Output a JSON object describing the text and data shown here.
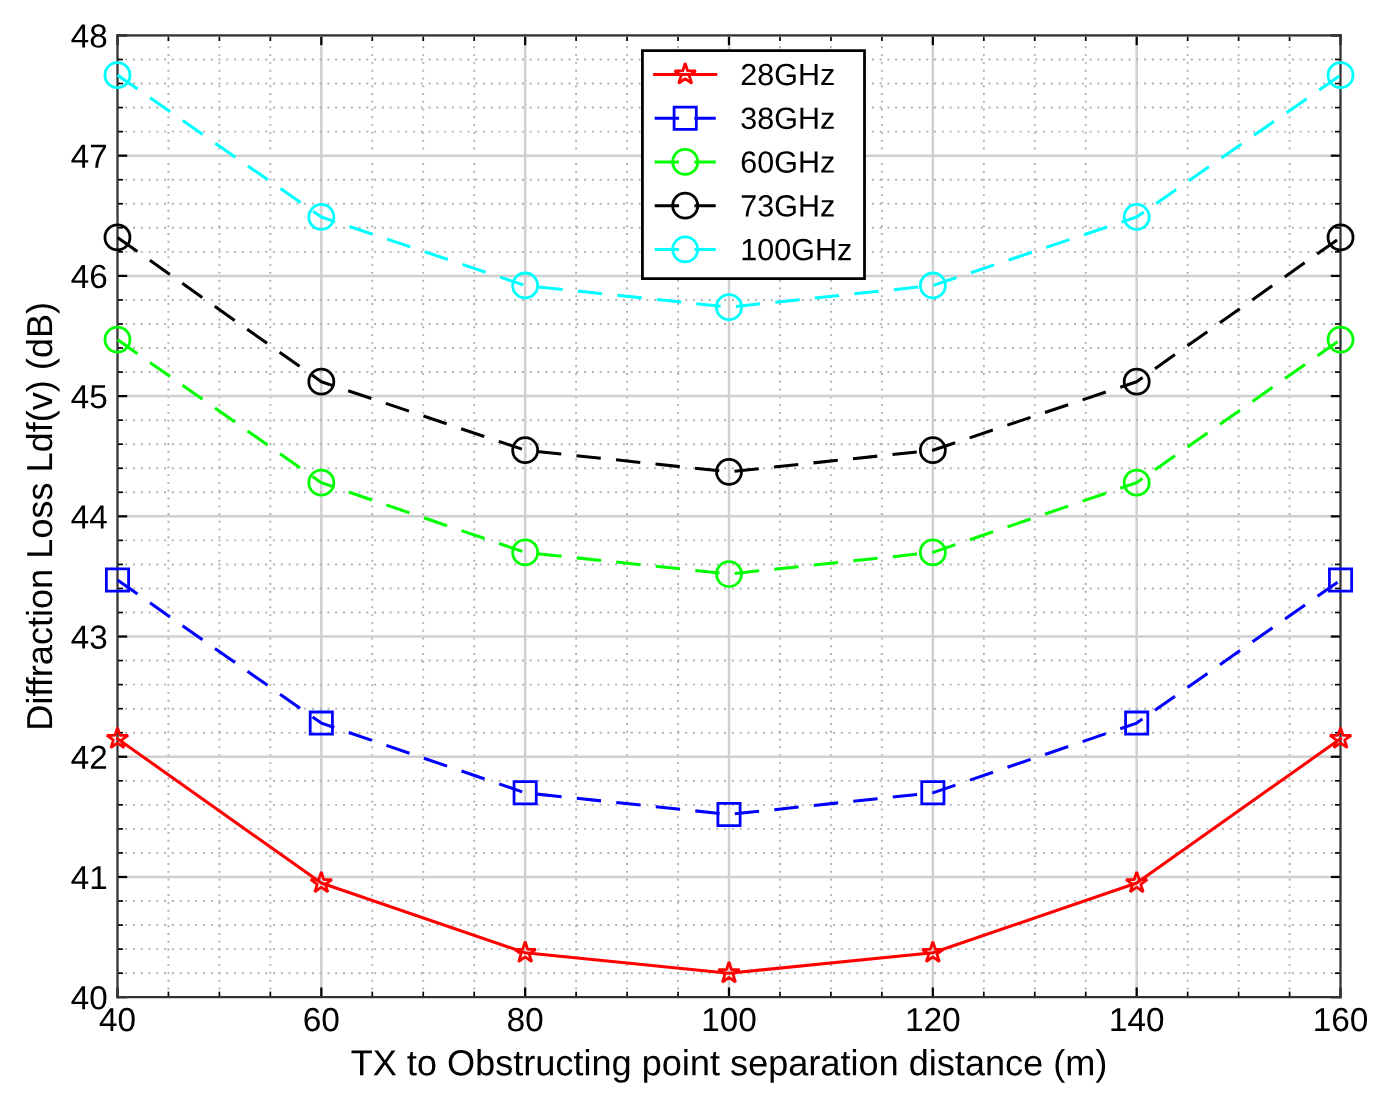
{
  "chart_data": {
    "type": "line",
    "xlabel": "TX to Obstructing point separation distance (m)",
    "ylabel": "Diffraction Loss Ldf(v) (dB)",
    "x": [
      40,
      60,
      80,
      100,
      120,
      140,
      160
    ],
    "series": [
      {
        "name": "28GHz",
        "color": "#ff0000",
        "marker": "star",
        "line_style": "solid",
        "values": [
          42.15,
          40.95,
          40.37,
          40.2,
          40.37,
          40.95,
          42.15
        ]
      },
      {
        "name": "38GHz",
        "color": "#0000ff",
        "marker": "square",
        "line_style": "dashed",
        "values": [
          43.47,
          42.28,
          41.7,
          41.52,
          41.7,
          42.28,
          43.47
        ]
      },
      {
        "name": "60GHz",
        "color": "#00ff00",
        "marker": "circle",
        "line_style": "dashed",
        "values": [
          45.47,
          44.28,
          43.7,
          43.52,
          43.7,
          44.28,
          45.47
        ]
      },
      {
        "name": "73GHz",
        "color": "#000000",
        "marker": "circle",
        "line_style": "dashed",
        "values": [
          46.32,
          45.12,
          44.55,
          44.37,
          44.55,
          45.12,
          46.32
        ]
      },
      {
        "name": "100GHz",
        "color": "#00ffff",
        "marker": "circle",
        "line_style": "dashed",
        "values": [
          47.67,
          46.49,
          45.92,
          45.74,
          45.92,
          46.49,
          47.67
        ]
      }
    ],
    "xlim": [
      40,
      160
    ],
    "ylim": [
      40,
      48
    ],
    "xticks": [
      40,
      60,
      80,
      100,
      120,
      140,
      160
    ],
    "yticks": [
      40,
      41,
      42,
      43,
      44,
      45,
      46,
      47,
      48
    ],
    "grid": true,
    "legend": "top"
  }
}
